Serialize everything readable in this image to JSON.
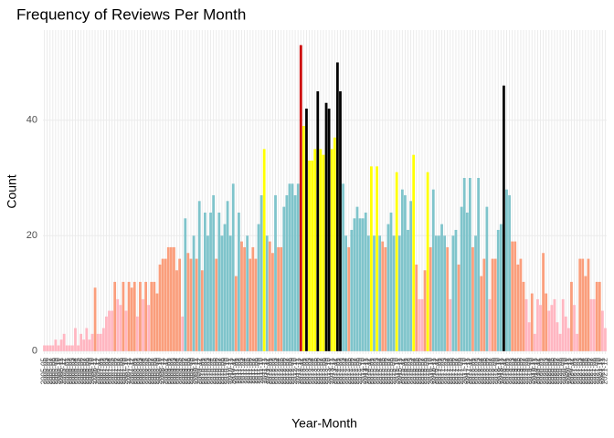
{
  "chart_data": {
    "type": "bar",
    "title": "Frequency of Reviews Per Month",
    "x_label": "Year-Month",
    "y_label": "Count",
    "categories": [
      "2005-05",
      "2005-06",
      "2005-07",
      "2005-08",
      "2005-09",
      "2005-10",
      "2005-11",
      "2005-12",
      "2006-01",
      "2006-02",
      "2006-03",
      "2006-04",
      "2006-05",
      "2006-06",
      "2006-07",
      "2006-08",
      "2006-09",
      "2006-10",
      "2006-11",
      "2006-12",
      "2007-01",
      "2007-02",
      "2007-03",
      "2007-04",
      "2007-05",
      "2007-06",
      "2007-07",
      "2007-08",
      "2007-09",
      "2007-10",
      "2007-11",
      "2007-12",
      "2008-01",
      "2008-02",
      "2008-03",
      "2008-04",
      "2008-05",
      "2008-06",
      "2008-07",
      "2008-08",
      "2008-09",
      "2008-10",
      "2008-11",
      "2008-12",
      "2009-01",
      "2009-02",
      "2009-03",
      "2009-04",
      "2009-05",
      "2009-06",
      "2009-07",
      "2009-08",
      "2009-09",
      "2009-10",
      "2009-11",
      "2009-12",
      "2010-01",
      "2010-02",
      "2010-03",
      "2010-04",
      "2010-05",
      "2010-06",
      "2010-07",
      "2010-08",
      "2010-09",
      "2010-10",
      "2010-11",
      "2010-12",
      "2011-01",
      "2011-02",
      "2011-03",
      "2011-04",
      "2011-05",
      "2011-06",
      "2011-07",
      "2011-08",
      "2011-09",
      "2011-10",
      "2011-11",
      "2011-12",
      "2012-01",
      "2012-02",
      "2012-03",
      "2012-04",
      "2012-05",
      "2012-06",
      "2012-07",
      "2012-08",
      "2012-09",
      "2012-10",
      "2012-11",
      "2012-12",
      "2013-01",
      "2013-02",
      "2013-03",
      "2013-04",
      "2013-05",
      "2013-06",
      "2013-07",
      "2013-08",
      "2013-09",
      "2013-10",
      "2013-11",
      "2013-12",
      "2014-01",
      "2014-02",
      "2014-03",
      "2014-04",
      "2014-05",
      "2014-06",
      "2014-07",
      "2014-08",
      "2014-09",
      "2014-10",
      "2014-11",
      "2014-12",
      "2015-01",
      "2015-02",
      "2015-03",
      "2015-04",
      "2015-05",
      "2015-06",
      "2015-07",
      "2015-08",
      "2015-09",
      "2015-10",
      "2015-11",
      "2015-12",
      "2016-01",
      "2016-02",
      "2016-03",
      "2016-04",
      "2016-05",
      "2016-06",
      "2016-07",
      "2016-08",
      "2016-09",
      "2016-10",
      "2016-11",
      "2016-12",
      "2017-01",
      "2017-02",
      "2017-03",
      "2017-04",
      "2017-05",
      "2017-06",
      "2017-07",
      "2017-08",
      "2017-09",
      "2017-10",
      "2017-11",
      "2017-12",
      "2018-01",
      "2018-02",
      "2018-03",
      "2018-04",
      "2018-05",
      "2018-06",
      "2018-07",
      "2018-08",
      "2018-09",
      "2018-10",
      "2018-11",
      "2018-12",
      "2019-01",
      "2019-02",
      "2019-03",
      "2019-04",
      "2019-05",
      "2019-06",
      "2019-07",
      "2019-08",
      "2019-09",
      "2019-10",
      "2019-11",
      "2019-12",
      "2020-01",
      "2020-02",
      "2020-03",
      "2020-04",
      "2020-05",
      "2020-06",
      "2020-07",
      "2020-08",
      "2020-09",
      "2020-10",
      "2020-11",
      "2020-12",
      "2021-01",
      "2021-02",
      "2021-03",
      "2021-04",
      "2021-05",
      "2021-06",
      "2021-07",
      "2021-08",
      "2021-09",
      "2021-10",
      "2021-11",
      "2021-12"
    ],
    "values": [
      1,
      1,
      1,
      1,
      2,
      1,
      2,
      3,
      1,
      1,
      1,
      4,
      1,
      3,
      2,
      4,
      2,
      3,
      11,
      3,
      3,
      4,
      6,
      7,
      7,
      12,
      9,
      8,
      12,
      7,
      12,
      11,
      12,
      6,
      12,
      9,
      12,
      8,
      12,
      12,
      10,
      15,
      16,
      16,
      18,
      18,
      18,
      14,
      16,
      6,
      23,
      17,
      16,
      20,
      16,
      26,
      14,
      24,
      20,
      24,
      27,
      16,
      24,
      20,
      22,
      26,
      20,
      29,
      13,
      24,
      19,
      18,
      20,
      16,
      18,
      16,
      22,
      27,
      35,
      20,
      19,
      17,
      27,
      18,
      18,
      25,
      27,
      29,
      29,
      27,
      29,
      53,
      39,
      42,
      33,
      33,
      35,
      45,
      35,
      34,
      43,
      42,
      35,
      37,
      50,
      45,
      29,
      20,
      18,
      21,
      23,
      25,
      23,
      23,
      24,
      20,
      32,
      20,
      32,
      20,
      19,
      18,
      22,
      24,
      20,
      31,
      20,
      28,
      27,
      21,
      26,
      34,
      15,
      9,
      9,
      14,
      31,
      18,
      28,
      20,
      20,
      22,
      20,
      18,
      9,
      20,
      21,
      15,
      25,
      30,
      24,
      30,
      18,
      20,
      30,
      13,
      16,
      25,
      9,
      16,
      16,
      21,
      22,
      46,
      28,
      27,
      19,
      19,
      15,
      16,
      12,
      9,
      5,
      10,
      3,
      9,
      8,
      17,
      10,
      7,
      8,
      9,
      5,
      3,
      9,
      6,
      4,
      12,
      8,
      3,
      16,
      16,
      13,
      16,
      9,
      9,
      12,
      12,
      7,
      4
    ],
    "colors": [
      "#ffb6c1",
      "#ffb6c1",
      "#ffb6c1",
      "#ffb6c1",
      "#ffb6c1",
      "#ffb6c1",
      "#ffb6c1",
      "#ffb6c1",
      "#ffb6c1",
      "#ffb6c1",
      "#ffb6c1",
      "#ffb6c1",
      "#ffb6c1",
      "#ffb6c1",
      "#ffb6c1",
      "#ffb6c1",
      "#ffb6c1",
      "#ffb6c1",
      "#fa9e7c",
      "#ffb6c1",
      "#ffb6c1",
      "#ffb6c1",
      "#ffb6c1",
      "#ffb6c1",
      "#ffb6c1",
      "#fa9e7c",
      "#ffb6c1",
      "#ffb6c1",
      "#fa9e7c",
      "#ffb6c1",
      "#fa9e7c",
      "#fa9e7c",
      "#fa9e7c",
      "#ffb6c1",
      "#fa9e7c",
      "#ffb6c1",
      "#fa9e7c",
      "#ffb6c1",
      "#fa9e7c",
      "#fa9e7c",
      "#fa9e7c",
      "#fa9e7c",
      "#fa9e7c",
      "#fa9e7c",
      "#fa9e7c",
      "#fa9e7c",
      "#fa9e7c",
      "#fa9e7c",
      "#fa9e7c",
      "#ffb6c1",
      "#7fc4cb",
      "#fa9e7c",
      "#fa9e7c",
      "#7fc4cb",
      "#fa9e7c",
      "#7fc4cb",
      "#fa9e7c",
      "#7fc4cb",
      "#7fc4cb",
      "#7fc4cb",
      "#7fc4cb",
      "#fa9e7c",
      "#7fc4cb",
      "#7fc4cb",
      "#7fc4cb",
      "#7fc4cb",
      "#7fc4cb",
      "#7fc4cb",
      "#fa9e7c",
      "#7fc4cb",
      "#fa9e7c",
      "#fa9e7c",
      "#7fc4cb",
      "#fa9e7c",
      "#fa9e7c",
      "#fa9e7c",
      "#7fc4cb",
      "#7fc4cb",
      "#ffff00",
      "#7fc4cb",
      "#fa9e7c",
      "#fa9e7c",
      "#7fc4cb",
      "#fa9e7c",
      "#fa9e7c",
      "#7fc4cb",
      "#7fc4cb",
      "#7fc4cb",
      "#7fc4cb",
      "#7fc4cb",
      "#7fc4cb",
      "#cc0000",
      "#ffff00",
      "#000000",
      "#ffff00",
      "#ffff00",
      "#ffff00",
      "#000000",
      "#ffff00",
      "#ffff00",
      "#000000",
      "#000000",
      "#ffff00",
      "#ffff00",
      "#000000",
      "#000000",
      "#7fc4cb",
      "#7fc4cb",
      "#fa9e7c",
      "#7fc4cb",
      "#7fc4cb",
      "#7fc4cb",
      "#7fc4cb",
      "#7fc4cb",
      "#7fc4cb",
      "#7fc4cb",
      "#ffff00",
      "#7fc4cb",
      "#ffff00",
      "#7fc4cb",
      "#fa9e7c",
      "#fa9e7c",
      "#7fc4cb",
      "#7fc4cb",
      "#7fc4cb",
      "#ffff00",
      "#7fc4cb",
      "#7fc4cb",
      "#7fc4cb",
      "#7fc4cb",
      "#7fc4cb",
      "#ffff00",
      "#fa9e7c",
      "#ffb6c1",
      "#ffb6c1",
      "#fa9e7c",
      "#ffff00",
      "#fa9e7c",
      "#7fc4cb",
      "#7fc4cb",
      "#7fc4cb",
      "#7fc4cb",
      "#7fc4cb",
      "#fa9e7c",
      "#ffb6c1",
      "#7fc4cb",
      "#7fc4cb",
      "#fa9e7c",
      "#7fc4cb",
      "#7fc4cb",
      "#7fc4cb",
      "#7fc4cb",
      "#fa9e7c",
      "#7fc4cb",
      "#7fc4cb",
      "#fa9e7c",
      "#fa9e7c",
      "#7fc4cb",
      "#ffb6c1",
      "#fa9e7c",
      "#fa9e7c",
      "#7fc4cb",
      "#7fc4cb",
      "#000000",
      "#7fc4cb",
      "#7fc4cb",
      "#fa9e7c",
      "#fa9e7c",
      "#fa9e7c",
      "#fa9e7c",
      "#fa9e7c",
      "#ffb6c1",
      "#ffb6c1",
      "#fa9e7c",
      "#ffb6c1",
      "#ffb6c1",
      "#ffb6c1",
      "#fa9e7c",
      "#fa9e7c",
      "#ffb6c1",
      "#ffb6c1",
      "#ffb6c1",
      "#ffb6c1",
      "#ffb6c1",
      "#ffb6c1",
      "#ffb6c1",
      "#ffb6c1",
      "#fa9e7c",
      "#ffb6c1",
      "#ffb6c1",
      "#fa9e7c",
      "#fa9e7c",
      "#fa9e7c",
      "#fa9e7c",
      "#ffb6c1",
      "#ffb6c1",
      "#fa9e7c",
      "#fa9e7c",
      "#ffb6c1",
      "#ffb6c1"
    ],
    "ylim": [
      -0.5,
      55.6
    ],
    "yticks": [
      0,
      20,
      40
    ],
    "grid": true
  }
}
